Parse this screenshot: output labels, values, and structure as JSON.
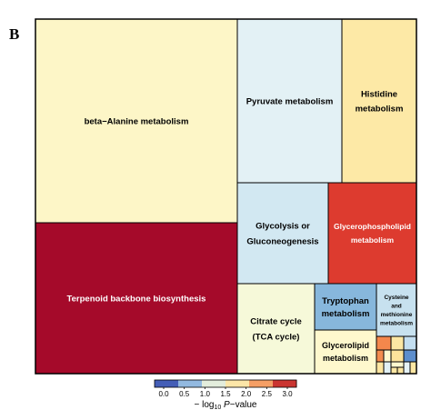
{
  "panel_label": "B",
  "chart_data": {
    "type": "treemap",
    "title": "",
    "color_scale": {
      "stops": [
        {
          "value": 0.0,
          "color": "#2c2c9e"
        },
        {
          "value": 0.5,
          "color": "#5b8fd0"
        },
        {
          "value": 1.0,
          "color": "#c8e3f0"
        },
        {
          "value": 1.5,
          "color": "#fdf7c8"
        },
        {
          "value": 2.0,
          "color": "#fbd487"
        },
        {
          "value": 2.5,
          "color": "#ee6a43"
        },
        {
          "value": 3.0,
          "color": "#a6001f"
        }
      ],
      "tick_labels": [
        "0.0",
        "0.5",
        "1.0",
        "1.5",
        "2.0",
        "2.5",
        "3.0"
      ],
      "axis_label_prefix": "− log",
      "axis_label_sub": "10",
      "axis_label_var": "P",
      "axis_label_suffix": "−value"
    },
    "cells": [
      {
        "name": "beta−Alanine metabolism",
        "lines": [
          "beta−Alanine metabolism"
        ],
        "value": 1.55,
        "color": "#fdf6c7",
        "text_color": "#000000"
      },
      {
        "name": "Terpenoid backbone biosynthesis",
        "lines": [
          "Terpenoid backbone biosynthesis"
        ],
        "value": 3.0,
        "color": "#a50a2a",
        "text_color": "#ffffff"
      },
      {
        "name": "Pyruvate metabolism",
        "lines": [
          "Pyruvate metabolism"
        ],
        "value": 1.2,
        "color": "#e3f1f5",
        "text_color": "#000000"
      },
      {
        "name": "Histidine metabolism",
        "lines": [
          "Histidine",
          "metabolism"
        ],
        "value": 1.85,
        "color": "#fde9a6",
        "text_color": "#000000"
      },
      {
        "name": "Glycolysis or Gluconeogenesis",
        "lines": [
          "Glycolysis or",
          "Gluconeogenesis"
        ],
        "value": 1.1,
        "color": "#d2e8f2",
        "text_color": "#000000"
      },
      {
        "name": "Glycerophospholipid metabolism",
        "lines": [
          "Glycerophospholipid",
          "metabolism"
        ],
        "value": 2.6,
        "color": "#dd3b2f",
        "text_color": "#ffffff"
      },
      {
        "name": "Citrate cycle (TCA cycle)",
        "lines": [
          "Citrate cycle",
          "(TCA cycle)"
        ],
        "value": 1.4,
        "color": "#f6f9d9",
        "text_color": "#000000"
      },
      {
        "name": "Tryptophan metabolism",
        "lines": [
          "Tryptophan",
          "metabolism"
        ],
        "value": 0.75,
        "color": "#87b7dc",
        "text_color": "#000000"
      },
      {
        "name": "Cysteine and methionine metabolism",
        "lines": [
          "Cysteine",
          "and",
          "methionine",
          "metabolism"
        ],
        "value": 1.0,
        "color": "#c7e1ef",
        "text_color": "#000000"
      },
      {
        "name": "Glycerolipid metabolism",
        "lines": [
          "Glycerolipid",
          "metabolism"
        ],
        "value": 1.6,
        "color": "#fef8cd",
        "text_color": "#000000"
      },
      {
        "name": "",
        "lines": [],
        "value": 2.3,
        "color": "#f4874c"
      },
      {
        "name": "",
        "lines": [],
        "value": 1.9,
        "color": "#fce7a3"
      },
      {
        "name": "",
        "lines": [],
        "value": 0.9,
        "color": "#c3def0"
      },
      {
        "name": "",
        "lines": [],
        "value": 2.3,
        "color": "#f38b4e"
      },
      {
        "name": "",
        "lines": [],
        "value": 1.6,
        "color": "#fff8cf"
      },
      {
        "name": "",
        "lines": [],
        "value": 1.9,
        "color": "#fde39b"
      },
      {
        "name": "",
        "lines": [],
        "value": 0.6,
        "color": "#5d8ecd"
      },
      {
        "name": "",
        "lines": [],
        "value": 1.9,
        "color": "#fde5a0"
      },
      {
        "name": "",
        "lines": [],
        "value": 1.2,
        "color": "#e1f0f5"
      },
      {
        "name": "",
        "lines": [],
        "value": 1.9,
        "color": "#fce7a4"
      },
      {
        "name": "",
        "lines": [],
        "value": 1.9,
        "color": "#fde6a1"
      },
      {
        "name": "",
        "lines": [],
        "value": 1.2,
        "color": "#e5f2f6"
      },
      {
        "name": "",
        "lines": [],
        "value": 1.9,
        "color": "#fde7a3"
      },
      {
        "name": "",
        "lines": [],
        "value": 1.6,
        "color": "#fff8cf"
      }
    ]
  }
}
